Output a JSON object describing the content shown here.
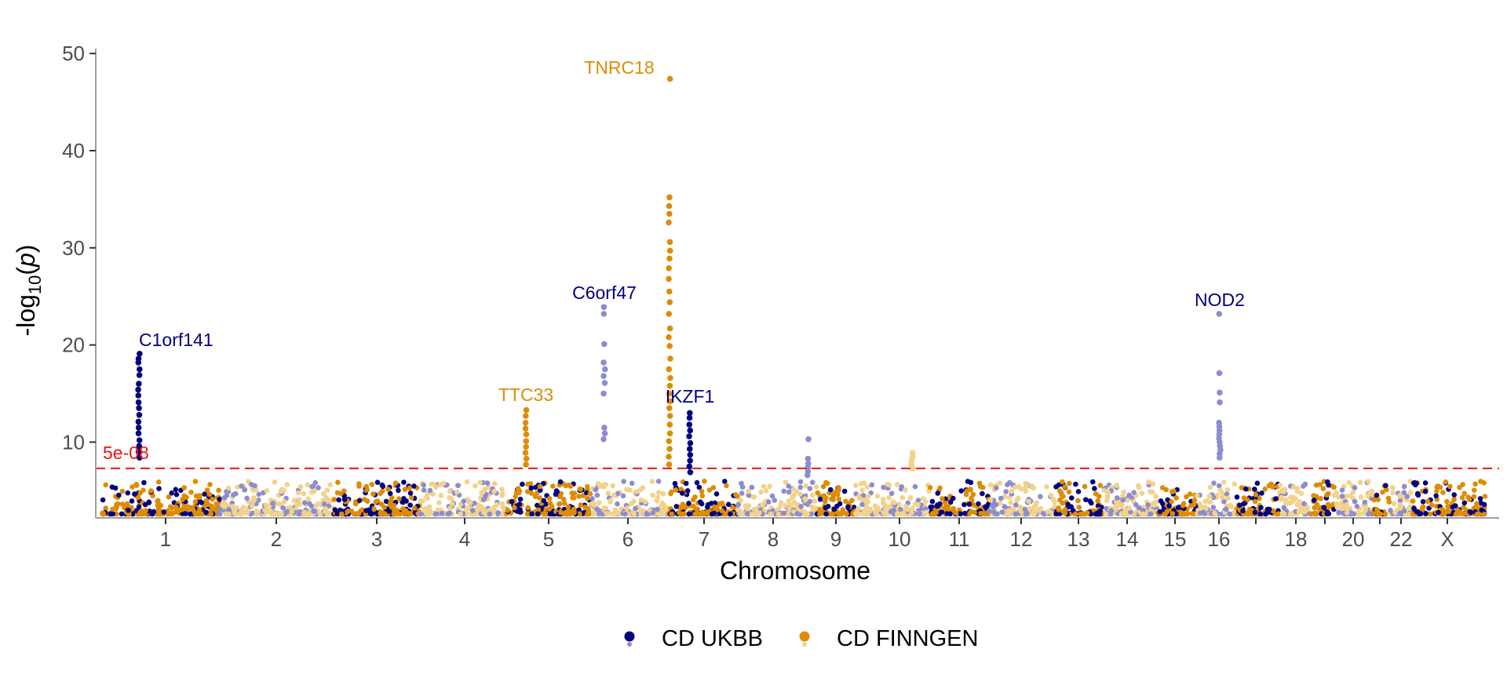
{
  "chart_data": {
    "type": "scatter",
    "subtype": "manhattan",
    "xlabel": "Chromosome",
    "ylabel_parts": [
      "-log",
      "10",
      "(",
      "p",
      ")"
    ],
    "ylim": [
      2.2,
      50.5
    ],
    "yticks": [
      10,
      20,
      30,
      40,
      50
    ],
    "chromosomes": [
      "1",
      "2",
      "3",
      "4",
      "5",
      "6",
      "7",
      "8",
      "9",
      "10",
      "11",
      "12",
      "13",
      "14",
      "15",
      "16",
      "17",
      "18",
      "19",
      "20",
      "21",
      "22",
      "X"
    ],
    "chromosome_tick_labels": [
      "1",
      "2",
      "3",
      "4",
      "5",
      "6",
      "7",
      "8",
      "9",
      "10",
      "11",
      "12",
      "13",
      "14",
      "15",
      "16",
      "",
      "18",
      "",
      "20",
      "",
      "22",
      "X"
    ],
    "threshold": {
      "value": 7.3,
      "label": "5e-08",
      "color": "#ee1111"
    },
    "grid": false,
    "legend_position": "bottom",
    "series": [
      {
        "name": "CD UKBB",
        "color_dark": "#000080",
        "color_light": "#8c8cd1"
      },
      {
        "name": "CD FINNGEN",
        "color_dark": "#de8c05",
        "color_light": "#f2d28c"
      }
    ],
    "annotations": [
      {
        "label": "C1orf141",
        "chromosome": "1",
        "value": 19.1,
        "series": "CD UKBB"
      },
      {
        "label": "TTC33",
        "chromosome": "5",
        "value": 13.3,
        "series": "CD FINNGEN"
      },
      {
        "label": "C6orf47",
        "chromosome": "6",
        "value": 23.9,
        "series": "CD UKBB"
      },
      {
        "label": "TNRC18",
        "chromosome": "7",
        "value": 47.4,
        "series": "CD FINNGEN"
      },
      {
        "label": "IKZF1",
        "chromosome": "7",
        "value": 13.0,
        "series": "CD UKBB"
      },
      {
        "label": "NOD2",
        "chromosome": "16",
        "value": 23.2,
        "series": "CD UKBB"
      }
    ],
    "peaks": [
      {
        "chromosome": "1",
        "series": "CD UKBB",
        "values": [
          19.1,
          18.6,
          18.2,
          17.5,
          16.9,
          16.0,
          15.4,
          14.8,
          14.1,
          13.5,
          12.8,
          12.1,
          11.5,
          10.9,
          10.2,
          9.6,
          9.0,
          8.4
        ]
      },
      {
        "chromosome": "5",
        "series": "CD FINNGEN",
        "values": [
          13.3,
          12.7,
          12.0,
          11.4,
          10.8,
          10.1,
          9.5,
          8.9,
          8.3,
          7.7
        ]
      },
      {
        "chromosome": "6",
        "series": "CD UKBB",
        "values": [
          23.9,
          23.2,
          20.1,
          18.2,
          17.5,
          16.8,
          16.1,
          15.0,
          11.5,
          10.9,
          10.3
        ]
      },
      {
        "chromosome": "7",
        "series": "CD FINNGEN",
        "values": [
          47.4,
          35.2,
          34.3,
          33.5,
          32.6,
          30.6,
          29.7,
          28.9,
          27.9,
          26.8,
          25.5,
          24.4,
          23.2,
          21.7,
          20.8,
          19.9,
          18.6,
          17.5,
          16.6,
          15.8,
          15.0,
          14.2,
          13.5,
          12.7,
          11.8,
          10.9,
          10.1,
          9.3,
          8.5,
          7.7
        ]
      },
      {
        "chromosome": "7",
        "series": "CD UKBB",
        "values": [
          13.0,
          12.5,
          11.8,
          11.2,
          10.6,
          9.9,
          9.3,
          8.7,
          8.1,
          7.5,
          6.9
        ]
      },
      {
        "chromosome": "16",
        "series": "CD UKBB",
        "values": [
          23.2,
          17.1,
          15.1,
          14.1,
          12.0,
          11.6,
          11.2,
          10.8,
          10.4,
          10.0,
          9.6,
          9.2,
          8.8,
          8.4
        ]
      },
      {
        "chromosome": "8",
        "series": "CD UKBB",
        "values": [
          10.3,
          8.3,
          7.8,
          7.4,
          7.0,
          6.6
        ]
      },
      {
        "chromosome": "10",
        "series": "CD FINNGEN",
        "values": [
          8.9,
          8.5,
          8.1,
          7.7,
          7.3
        ]
      }
    ]
  }
}
